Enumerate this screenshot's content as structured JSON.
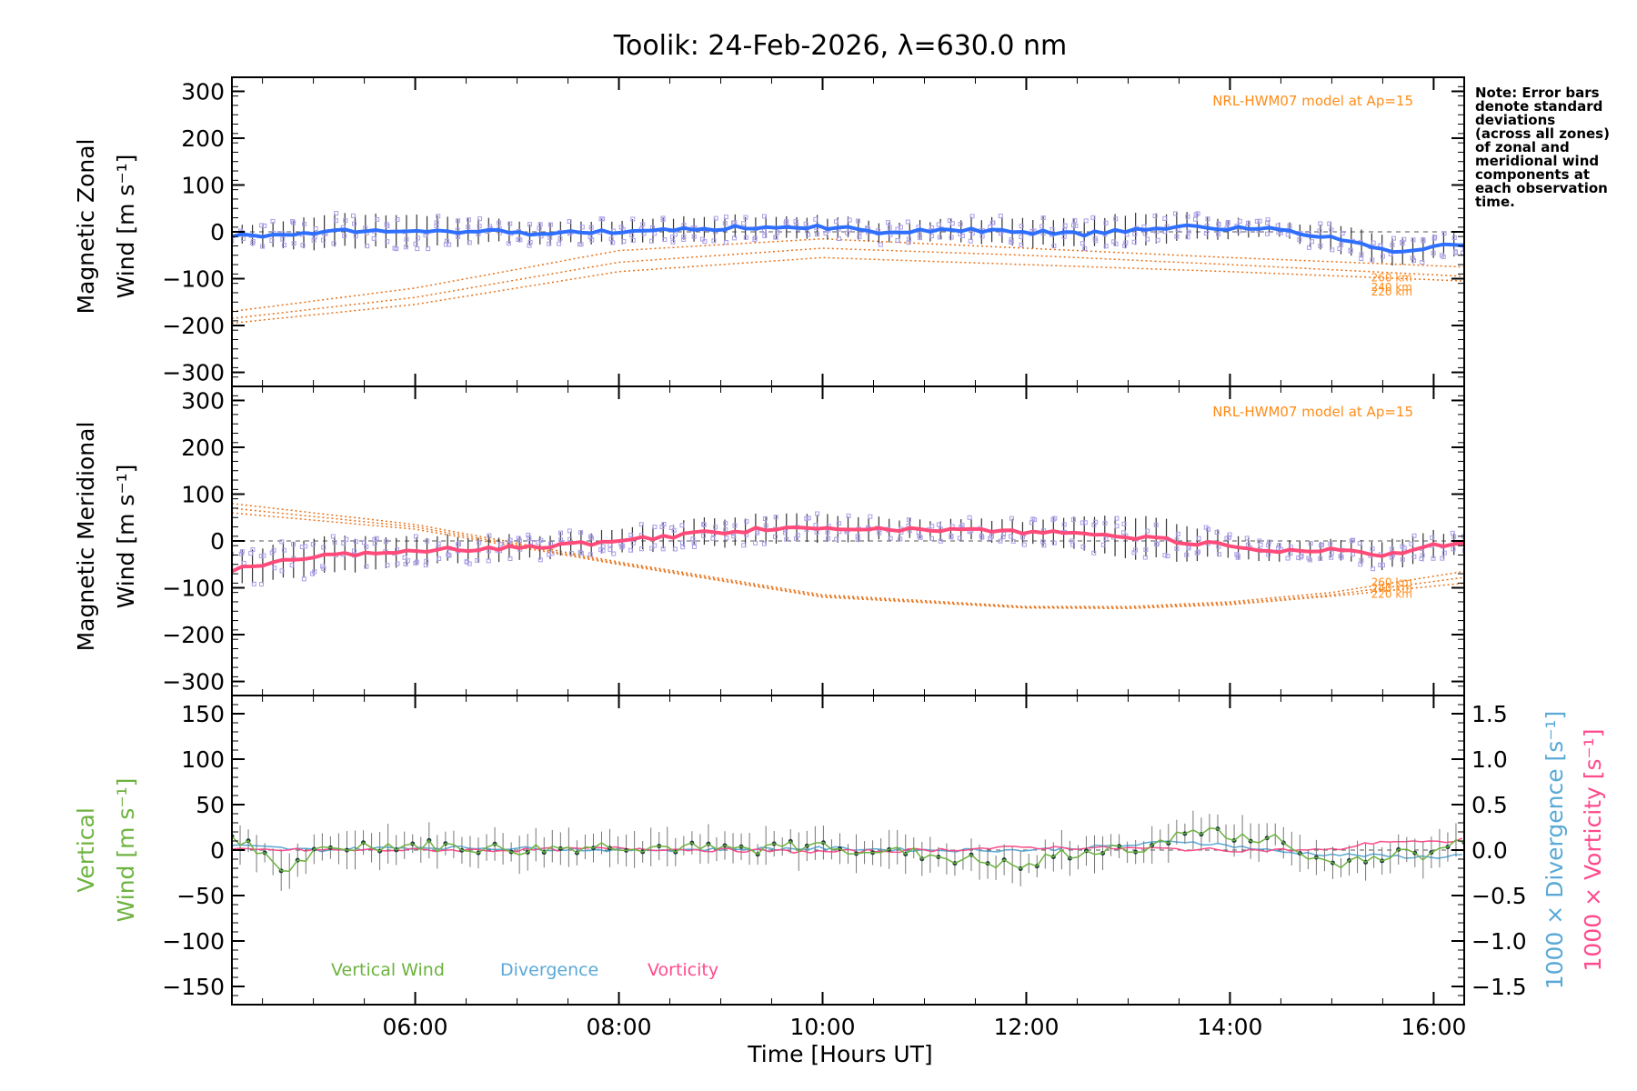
{
  "title": "Toolik: 24-Feb-2026, λ=630.0 nm",
  "note_lines": [
    "Note: Error bars",
    "denote standard",
    "deviations",
    "(across all zones)",
    "of zonal and",
    "meridional wind",
    "components at",
    "each observation",
    "time."
  ],
  "model_label": "NRL-HWM07 model at Ap=15",
  "colors": {
    "zonal": "#2f6fff",
    "meridional": "#ff4a7a",
    "vertical": "#6db33f",
    "divergence": "#5aa9d6",
    "vorticity": "#ff4a8c",
    "model": "#e8731a",
    "scatter": "#a99ee6",
    "errorbar": "#333333"
  },
  "chart_data": [
    {
      "type": "line",
      "name": "zonal",
      "ylabel": "Magnetic Zonal",
      "ylabel2": "Wind [m s⁻¹]",
      "xlim": [
        4.2,
        16.3
      ],
      "ylim": [
        -330,
        330
      ],
      "yticks": [
        -300,
        -200,
        -100,
        0,
        100,
        200,
        300
      ],
      "ytick_labels": [
        "−300",
        "−200",
        "−100",
        "0",
        "100",
        "200",
        "300"
      ],
      "annotation": "NRL-HWM07 model at Ap=15",
      "x": [
        4.2,
        5,
        6,
        7,
        8,
        9,
        10,
        10.5,
        11,
        12,
        12.5,
        13,
        13.5,
        14,
        14.5,
        15,
        15.5,
        16,
        16.3
      ],
      "values": [
        -10,
        0,
        5,
        -2,
        0,
        8,
        12,
        0,
        5,
        0,
        -5,
        5,
        12,
        8,
        5,
        -15,
        -40,
        -35,
        -25
      ],
      "error": [
        18,
        35,
        35,
        22,
        25,
        25,
        22,
        22,
        20,
        30,
        30,
        35,
        30,
        20,
        15,
        30,
        30,
        25,
        25
      ],
      "model_series": [
        {
          "label": "260 km",
          "x": [
            4.2,
            6,
            8,
            10,
            12,
            14,
            16.3
          ],
          "values": [
            -170,
            -120,
            -40,
            -15,
            -35,
            -55,
            -75
          ]
        },
        {
          "label": "240 km",
          "x": [
            4.2,
            6,
            8,
            10,
            12,
            14,
            16.3
          ],
          "values": [
            -185,
            -140,
            -65,
            -35,
            -50,
            -70,
            -95
          ]
        },
        {
          "label": "220 km",
          "x": [
            4.2,
            6,
            8,
            10,
            12,
            14,
            16.3
          ],
          "values": [
            -195,
            -155,
            -85,
            -55,
            -70,
            -85,
            -105
          ]
        }
      ]
    },
    {
      "type": "line",
      "name": "meridional",
      "ylabel": "Magnetic Meridional",
      "ylabel2": "Wind [m s⁻¹]",
      "xlim": [
        4.2,
        16.3
      ],
      "ylim": [
        -330,
        330
      ],
      "yticks": [
        -300,
        -200,
        -100,
        0,
        100,
        200,
        300
      ],
      "ytick_labels": [
        "−300",
        "−200",
        "−100",
        "0",
        "100",
        "200",
        "300"
      ],
      "annotation": "NRL-HWM07 model at Ap=15",
      "x": [
        4.2,
        5,
        6,
        7,
        8,
        9,
        10,
        10.5,
        11,
        12,
        12.5,
        13,
        13.5,
        14,
        14.5,
        15,
        15.5,
        16,
        16.3
      ],
      "values": [
        -60,
        -35,
        -20,
        -15,
        0,
        20,
        30,
        25,
        25,
        20,
        15,
        10,
        0,
        -10,
        -20,
        -20,
        -30,
        -10,
        -5
      ],
      "error": [
        35,
        40,
        30,
        25,
        25,
        30,
        30,
        25,
        20,
        25,
        35,
        45,
        40,
        25,
        20,
        20,
        30,
        30,
        20
      ],
      "model_series": [
        {
          "label": "260 km",
          "x": [
            4.2,
            6,
            8,
            10,
            12,
            13,
            14,
            15,
            16.3
          ],
          "values": [
            80,
            35,
            -45,
            -115,
            -140,
            -140,
            -130,
            -110,
            -65
          ]
        },
        {
          "label": "240 km",
          "x": [
            4.2,
            6,
            8,
            10,
            12,
            13,
            14,
            15,
            16.3
          ],
          "values": [
            70,
            30,
            -48,
            -118,
            -142,
            -143,
            -133,
            -115,
            -78
          ]
        },
        {
          "label": "220 km",
          "x": [
            4.2,
            6,
            8,
            10,
            12,
            13,
            14,
            15,
            16.3
          ],
          "values": [
            60,
            25,
            -50,
            -120,
            -143,
            -144,
            -136,
            -118,
            -90
          ]
        }
      ]
    },
    {
      "type": "line",
      "name": "vertical",
      "ylabel": "Vertical",
      "ylabel2": "Wind [m s⁻¹]",
      "ylabel_right1": "1000 × Divergence [s⁻¹]",
      "ylabel_right2": "1000 × Vorticity [s⁻¹]",
      "xlabel": "Time [Hours UT]",
      "xlim": [
        4.2,
        16.3
      ],
      "ylim": [
        -170,
        170
      ],
      "yticks": [
        -150,
        -100,
        -50,
        0,
        50,
        100,
        150
      ],
      "ytick_labels": [
        "−150",
        "−100",
        "−50",
        "0",
        "50",
        "100",
        "150"
      ],
      "y2lim": [
        -1.7,
        1.7
      ],
      "y2ticks": [
        -1.5,
        -1.0,
        -0.5,
        0.0,
        0.5,
        1.0,
        1.5
      ],
      "y2tick_labels": [
        "−1.5",
        "−1.0",
        "−0.5",
        "0.0",
        "0.5",
        "1.0",
        "1.5"
      ],
      "xticks": [
        6,
        8,
        10,
        12,
        14,
        16
      ],
      "xtick_labels": [
        "06:00",
        "08:00",
        "10:00",
        "12:00",
        "14:00",
        "16:00"
      ],
      "legend": [
        "Vertical Wind",
        "Divergence",
        "Vorticity"
      ],
      "series": [
        {
          "name": "Vertical Wind",
          "x": [
            4.2,
            4.5,
            4.7,
            5,
            5.5,
            6,
            7,
            8,
            9,
            10,
            11,
            11.7,
            12,
            12.3,
            13,
            13.5,
            13.8,
            14,
            14.4,
            14.7,
            15,
            15.5,
            16,
            16.2,
            16.3
          ],
          "values": [
            15,
            0,
            -25,
            -5,
            5,
            5,
            0,
            5,
            0,
            5,
            -5,
            -15,
            -20,
            -5,
            0,
            15,
            25,
            10,
            15,
            -5,
            -15,
            -5,
            -5,
            10,
            5
          ]
        },
        {
          "name": "Divergence",
          "x": [
            4.2,
            5,
            6,
            7,
            8,
            9,
            10,
            11,
            12,
            13,
            13.5,
            14,
            14.5,
            15,
            16,
            16.3
          ],
          "values": [
            0.05,
            0.0,
            0.03,
            0.02,
            0.0,
            0.01,
            0.02,
            0.0,
            0.0,
            0.05,
            0.1,
            0.05,
            -0.02,
            -0.05,
            -0.08,
            -0.05
          ]
        },
        {
          "name": "Vorticity",
          "x": [
            4.2,
            5,
            6,
            7,
            8,
            9,
            10,
            11,
            12,
            13,
            14,
            15,
            15.5,
            16,
            16.3
          ],
          "values": [
            0.0,
            0.0,
            0.0,
            0.0,
            0.02,
            0.0,
            -0.02,
            0.0,
            0.03,
            0.02,
            0.0,
            0.0,
            0.1,
            0.08,
            0.12
          ]
        }
      ]
    }
  ]
}
